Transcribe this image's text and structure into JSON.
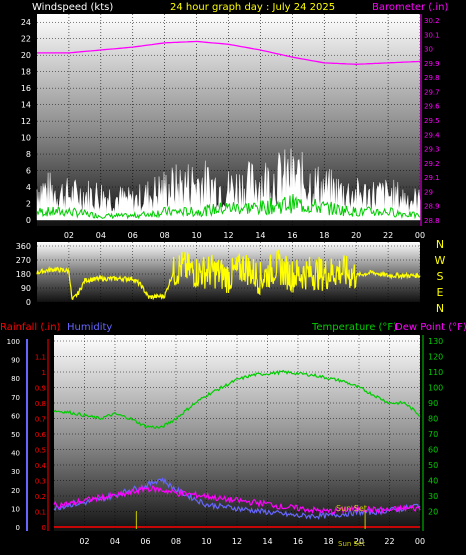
{
  "header": {
    "left": "Windspeed (kts)",
    "center": "24 hour graph day : July 24 2025",
    "right": "Barometer (.in)"
  },
  "colors": {
    "background": "#000000",
    "windspeed_label": "#ffffff",
    "title": "#ffff00",
    "barometer": "#ff00ff",
    "wind_gust": "#ffffff",
    "wind_avg": "#00cc00",
    "wind_dir": "#ffff00",
    "rainfall": "#ff0000",
    "humidity": "#6666ff",
    "temperature": "#00cc00",
    "dew_point": "#ff00ff",
    "sunset_label": "#cccc00"
  },
  "chart_data": [
    {
      "type": "line",
      "panel": "wind-barometer",
      "x_ticks": [
        "02",
        "04",
        "06",
        "08",
        "10",
        "12",
        "14",
        "16",
        "18",
        "20",
        "22",
        "00"
      ],
      "left_axis": {
        "label": "Windspeed (kts)",
        "ylim": [
          0,
          25
        ],
        "ticks": [
          "0",
          "2",
          "4",
          "6",
          "8",
          "10",
          "12",
          "14",
          "16",
          "18",
          "20",
          "22",
          "24"
        ]
      },
      "right_axis": {
        "label": "Barometer (.in)",
        "ylim": [
          28.8,
          30.2
        ],
        "ticks": [
          "28.8",
          "28.9",
          "29",
          "29.1",
          "29.2",
          "29.3",
          "29.4",
          "29.5",
          "29.6",
          "29.7",
          "29.8",
          "29.9",
          "30",
          "30.1",
          "30.2"
        ]
      },
      "series": [
        {
          "axis": "right",
          "x": [
            0,
            2,
            4,
            6,
            8,
            10,
            12,
            14,
            16,
            18,
            20,
            22,
            24
          ],
          "values": [
            29.97,
            29.97,
            29.99,
            30.01,
            30.04,
            30.05,
            30.03,
            29.99,
            29.94,
            29.9,
            29.89,
            29.9,
            29.91
          ]
        },
        {
          "axis": "left",
          "x": [
            0,
            2,
            4,
            6,
            8,
            10,
            12,
            14,
            16,
            18,
            20,
            22,
            24
          ],
          "values": [
            5,
            4,
            4,
            3,
            5,
            6,
            5,
            6,
            7,
            5,
            4,
            4,
            3
          ]
        },
        {
          "axis": "left",
          "x": [
            0,
            2,
            4,
            6,
            8,
            10,
            12,
            14,
            16,
            18,
            20,
            22,
            24
          ],
          "values": [
            1,
            1,
            0.5,
            0.5,
            1,
            1,
            1.5,
            1.5,
            2,
            1.5,
            1,
            1,
            0.5
          ]
        }
      ],
      "grid": true
    },
    {
      "type": "line",
      "panel": "wind-direction",
      "x_ticks": [],
      "left_axis": {
        "ylim": [
          0,
          360
        ],
        "ticks": [
          "0",
          "90",
          "180",
          "270",
          "360"
        ]
      },
      "right_labels": [
        "N",
        "W",
        "S",
        "E",
        "N"
      ],
      "series": [
        {
          "x": [
            0,
            1,
            2,
            2.2,
            2.6,
            3,
            4,
            6,
            6.5,
            7,
            8,
            8.5,
            9,
            10,
            11,
            12,
            13,
            14,
            15,
            16,
            17,
            18,
            19,
            20,
            21,
            22,
            23,
            24
          ],
          "values": [
            190,
            210,
            200,
            10,
            60,
            140,
            150,
            150,
            110,
            30,
            40,
            180,
            230,
            190,
            200,
            160,
            230,
            150,
            230,
            170,
            190,
            180,
            200,
            170,
            190,
            170,
            170,
            170
          ]
        }
      ],
      "grid": true
    },
    {
      "type": "line",
      "panel": "rain-humidity-temperature",
      "x_ticks": [
        "02",
        "04",
        "06",
        "08",
        "10",
        "12",
        "14",
        "16",
        "18",
        "20",
        "22",
        "00"
      ],
      "left_axes": [
        {
          "label": "Rainfall (.in)",
          "ylim": [
            0,
            1.2
          ],
          "ticks": [
            "0",
            "0.1",
            "0.2",
            "0.3",
            "0.4",
            "0.5",
            "0.6",
            "0.7",
            "0.8",
            "0.9",
            "1",
            "1.1"
          ]
        },
        {
          "label": "Humidity",
          "ylim": [
            0,
            100
          ],
          "ticks": [
            "0",
            "10",
            "20",
            "30",
            "40",
            "50",
            "60",
            "70",
            "80",
            "90",
            "100"
          ]
        }
      ],
      "right_axis": {
        "label": "Temperature (°F)",
        "ylim": [
          10,
          130
        ],
        "ticks": [
          "20",
          "30",
          "40",
          "50",
          "60",
          "70",
          "80",
          "90",
          "100",
          "110",
          "120",
          "130"
        ]
      },
      "series": [
        {
          "name": "Temperature (°F)",
          "axis": "right",
          "x": [
            0,
            1,
            2,
            3,
            4,
            5,
            6,
            7,
            8,
            9,
            10,
            11,
            12,
            13,
            14,
            15,
            16,
            17,
            18,
            19,
            20,
            21,
            22,
            23,
            24
          ],
          "values": [
            85,
            84,
            82,
            80,
            83,
            80,
            75,
            74,
            80,
            88,
            95,
            100,
            105,
            108,
            109,
            110,
            109,
            108,
            106,
            104,
            100,
            95,
            90,
            90,
            82
          ]
        },
        {
          "name": "Dew Point (°F)",
          "axis": "right",
          "x": [
            0,
            1,
            2,
            3,
            4,
            5,
            6,
            7,
            8,
            9,
            10,
            11,
            12,
            13,
            14,
            15,
            16,
            17,
            18,
            19,
            20,
            21,
            22,
            23,
            24
          ],
          "values": [
            24,
            25,
            27,
            29,
            30,
            32,
            35,
            34,
            32,
            31,
            30,
            28,
            27,
            26,
            25,
            23,
            22,
            21,
            20,
            21,
            22,
            21,
            21,
            22,
            22
          ]
        },
        {
          "name": "Humidity",
          "axis": "humidity",
          "x": [
            0,
            1,
            2,
            3,
            4,
            5,
            6,
            7,
            8,
            9,
            10,
            11,
            12,
            13,
            14,
            15,
            16,
            17,
            18,
            19,
            20,
            21,
            22,
            23,
            24
          ],
          "values": [
            10,
            12,
            13,
            15,
            17,
            20,
            22,
            26,
            20,
            16,
            12,
            11,
            10,
            9,
            8,
            7,
            6,
            6,
            6,
            7,
            8,
            8,
            9,
            10,
            12
          ]
        },
        {
          "name": "Rainfall (.in)",
          "axis": "rain",
          "x": [
            0,
            24
          ],
          "values": [
            0,
            0
          ]
        }
      ],
      "annotations": [
        "Sun Set",
        "Sun Set"
      ],
      "grid": true
    }
  ]
}
